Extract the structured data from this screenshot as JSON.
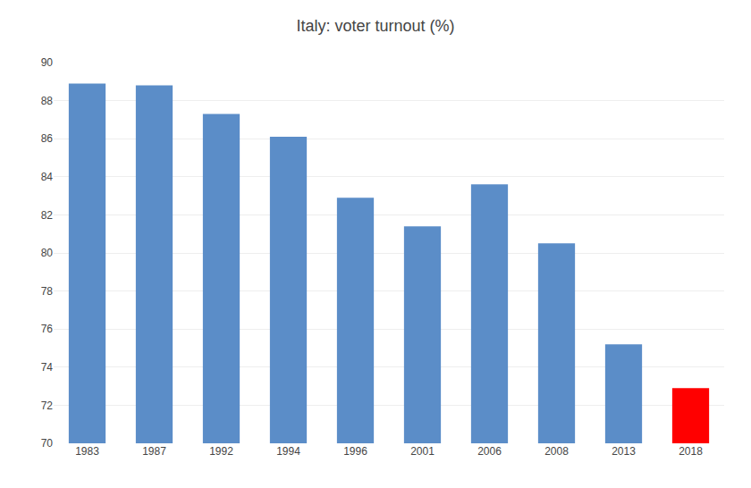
{
  "chart_data": {
    "type": "bar",
    "title": "Italy: voter turnout (%)",
    "categories": [
      "1983",
      "1987",
      "1992",
      "1994",
      "1996",
      "2001",
      "2006",
      "2008",
      "2013",
      "2018"
    ],
    "values": [
      88.9,
      88.8,
      87.3,
      86.1,
      82.9,
      81.4,
      83.6,
      80.5,
      75.2,
      72.9
    ],
    "colors": [
      "#5B8DC8",
      "#5B8DC8",
      "#5B8DC8",
      "#5B8DC8",
      "#5B8DC8",
      "#5B8DC8",
      "#5B8DC8",
      "#5B8DC8",
      "#5B8DC8",
      "#FF0000"
    ],
    "ylim": [
      70,
      90
    ],
    "yticks": [
      70,
      72,
      74,
      76,
      78,
      80,
      82,
      84,
      86,
      88,
      90
    ],
    "grid": true
  }
}
